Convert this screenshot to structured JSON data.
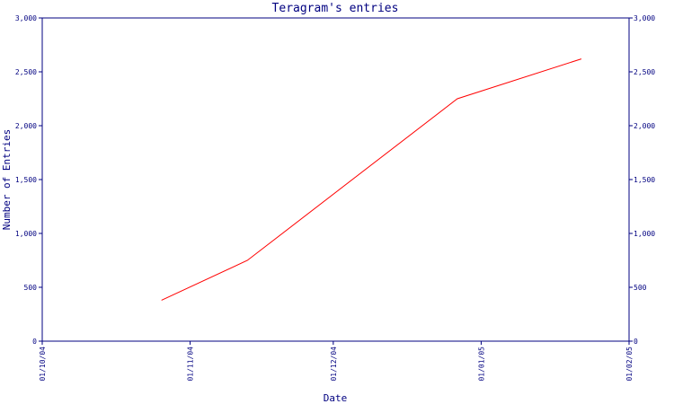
{
  "chart_data": {
    "type": "line",
    "title": "Teragram's entries",
    "xlabel": "Date",
    "ylabel": "Number of Entries",
    "x_ticks": [
      "01/10/04",
      "01/11/04",
      "01/12/04",
      "01/01/05",
      "01/02/05"
    ],
    "y_ticks": [
      "0",
      "500",
      "1,000",
      "1,500",
      "2,000",
      "2,500",
      "3,000"
    ],
    "ylim": [
      0,
      3000
    ],
    "xlim": [
      "2004-10-01",
      "2005-02-01"
    ],
    "grid": false,
    "series": [
      {
        "x": [
          "2004-10-26",
          "2004-11-13",
          "2004-12-27",
          "2005-01-22"
        ],
        "values": [
          380,
          750,
          2250,
          2620
        ],
        "color": "#ff0000"
      }
    ],
    "axis_color": "#000080"
  }
}
